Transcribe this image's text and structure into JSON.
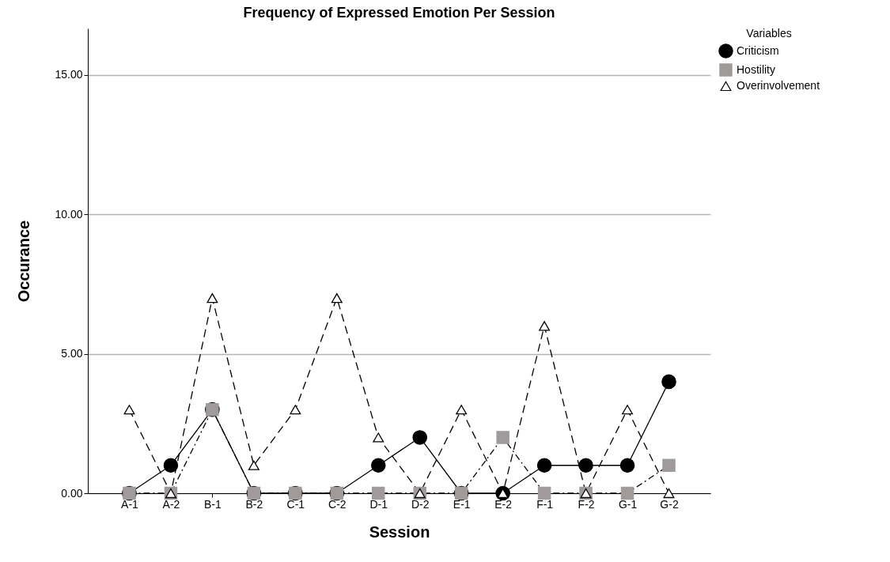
{
  "chart_data": {
    "type": "line",
    "title": "Frequency of Expressed Emotion Per Session",
    "xlabel": "Session",
    "ylabel": "Occurance",
    "legend_title": "Variables",
    "categories": [
      "A-1",
      "A-2",
      "B-1",
      "B-2",
      "C-1",
      "C-2",
      "D-1",
      "D-2",
      "E-1",
      "E-2",
      "F-1",
      "F-2",
      "G-1",
      "G-2"
    ],
    "series": [
      {
        "name": "Criticism",
        "color": "#000000",
        "marker": "circle",
        "line_style": "solid",
        "values": [
          0,
          1,
          3,
          0,
          0,
          0,
          1,
          2,
          0,
          0,
          1,
          1,
          1,
          4
        ]
      },
      {
        "name": "Hostility",
        "color": "#a09a9a",
        "marker": "square",
        "line_style": "dashdot",
        "values": [
          0,
          0,
          3,
          0,
          0,
          0,
          0,
          0,
          0,
          2,
          0,
          0,
          0,
          1
        ]
      },
      {
        "name": "Overinvolvement",
        "color": "#000000",
        "marker": "triangle",
        "line_style": "dashed",
        "values": [
          3,
          0,
          7,
          1,
          3,
          7,
          2,
          0,
          3,
          0,
          6,
          0,
          3,
          0
        ]
      }
    ],
    "ylim": [
      0,
      16.67
    ],
    "yticks": [
      {
        "value": 0,
        "label": "0.00"
      },
      {
        "value": 5,
        "label": "5.00"
      },
      {
        "value": 10,
        "label": "10.00"
      },
      {
        "value": 15,
        "label": "15.00"
      }
    ],
    "grid": "y",
    "legend": "top right"
  }
}
